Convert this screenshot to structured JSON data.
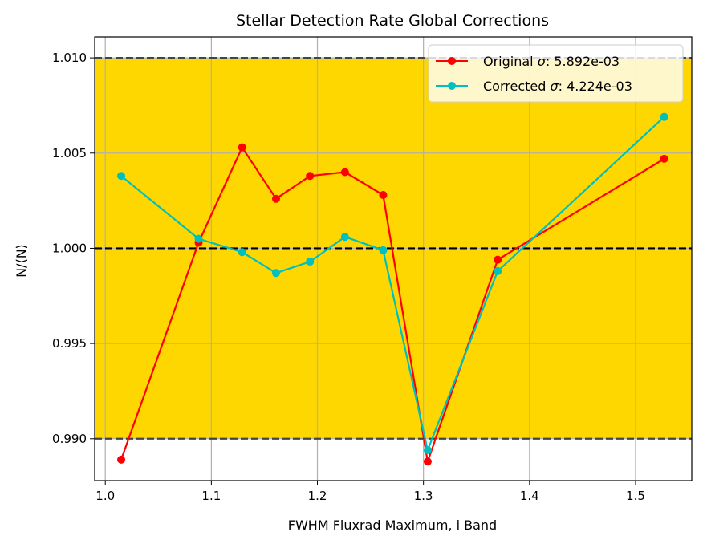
{
  "chart_data": {
    "type": "line",
    "title": "Stellar Detection Rate Global Corrections",
    "xlabel": "FWHM Fluxrad Maximum, i Band",
    "ylabel": "N/⟨N⟩",
    "xlim": [
      0.99,
      1.553
    ],
    "ylim": [
      0.9878,
      1.0111
    ],
    "xticks": [
      1.0,
      1.1,
      1.2,
      1.3,
      1.4,
      1.5
    ],
    "xtick_labels": [
      "1.0",
      "1.1",
      "1.2",
      "1.3",
      "1.4",
      "1.5"
    ],
    "yticks": [
      0.99,
      0.995,
      1.0,
      1.005,
      1.01
    ],
    "ytick_labels": [
      "0.990",
      "0.995",
      "1.000",
      "1.005",
      "1.010"
    ],
    "grid": true,
    "legend_position": "top-right",
    "shaded_band": {
      "y0": 0.99,
      "y1": 1.01,
      "color": "#FFD700"
    },
    "hlines": [
      {
        "y": 1.01,
        "style": "dashed",
        "color": "#444444"
      },
      {
        "y": 1.0,
        "style": "dashed",
        "color": "#000000"
      },
      {
        "y": 0.99,
        "style": "dashed",
        "color": "#444444"
      }
    ],
    "x": [
      1.015,
      1.088,
      1.129,
      1.161,
      1.193,
      1.226,
      1.262,
      1.304,
      1.37,
      1.527
    ],
    "series": [
      {
        "name": "Original σ: 5.892e-03",
        "legend_prefix": "Original ",
        "legend_sigma": "σ",
        "legend_suffix": ": 5.892e-03",
        "color": "#FF0000",
        "values": [
          0.9889,
          1.0003,
          1.0053,
          1.0026,
          1.0038,
          1.004,
          1.0028,
          0.9888,
          0.9994,
          1.0047
        ]
      },
      {
        "name": "Corrected σ: 4.224e-03",
        "legend_prefix": "Corrected ",
        "legend_sigma": "σ",
        "legend_suffix": ": 4.224e-03",
        "color": "#00BFBF",
        "values": [
          1.0038,
          1.0005,
          0.9998,
          0.9987,
          0.9993,
          1.0006,
          0.9999,
          0.9894,
          0.9988,
          1.0069
        ]
      }
    ]
  }
}
